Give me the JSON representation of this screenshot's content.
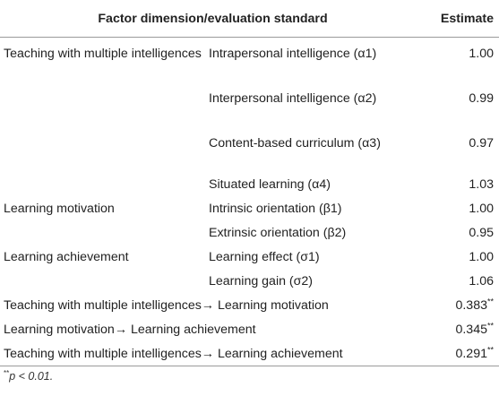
{
  "header": {
    "factor": "Factor dimension/evaluation standard",
    "estimate": "Estimate"
  },
  "rows": [
    {
      "factor": "Teaching with multiple intelligences",
      "standard": "Intrapersonal intelligence (α1)",
      "estimate": "1.00"
    },
    {
      "factor": "",
      "standard": "Interpersonal intelligence (α2)",
      "estimate": "0.99"
    },
    {
      "factor": "",
      "standard": "Content-based curriculum (α3)",
      "estimate": "0.97"
    },
    {
      "factor": "",
      "standard": "Situated learning (α4)",
      "estimate": "1.03"
    },
    {
      "factor": "Learning motivation",
      "standard": "Intrinsic orientation (β1)",
      "estimate": "1.00"
    },
    {
      "factor": "",
      "standard": "Extrinsic orientation (β2)",
      "estimate": "0.95"
    },
    {
      "factor": "Learning achievement",
      "standard": "Learning effect (σ1)",
      "estimate": "1.00"
    },
    {
      "factor": "",
      "standard": "Learning gain (σ2)",
      "estimate": "1.06"
    }
  ],
  "paths": [
    {
      "path": "Teaching with multiple intelligences→ Learning motivation",
      "estimate": "0.383",
      "sig": "**"
    },
    {
      "path": "Learning motivation→ Learning achievement",
      "estimate": "0.345",
      "sig": "**"
    },
    {
      "path": "Teaching with multiple intelligences→ Learning achievement",
      "estimate": "0.291",
      "sig": "**"
    }
  ],
  "footnote": {
    "stars": "**",
    "text": "p < 0.01."
  }
}
